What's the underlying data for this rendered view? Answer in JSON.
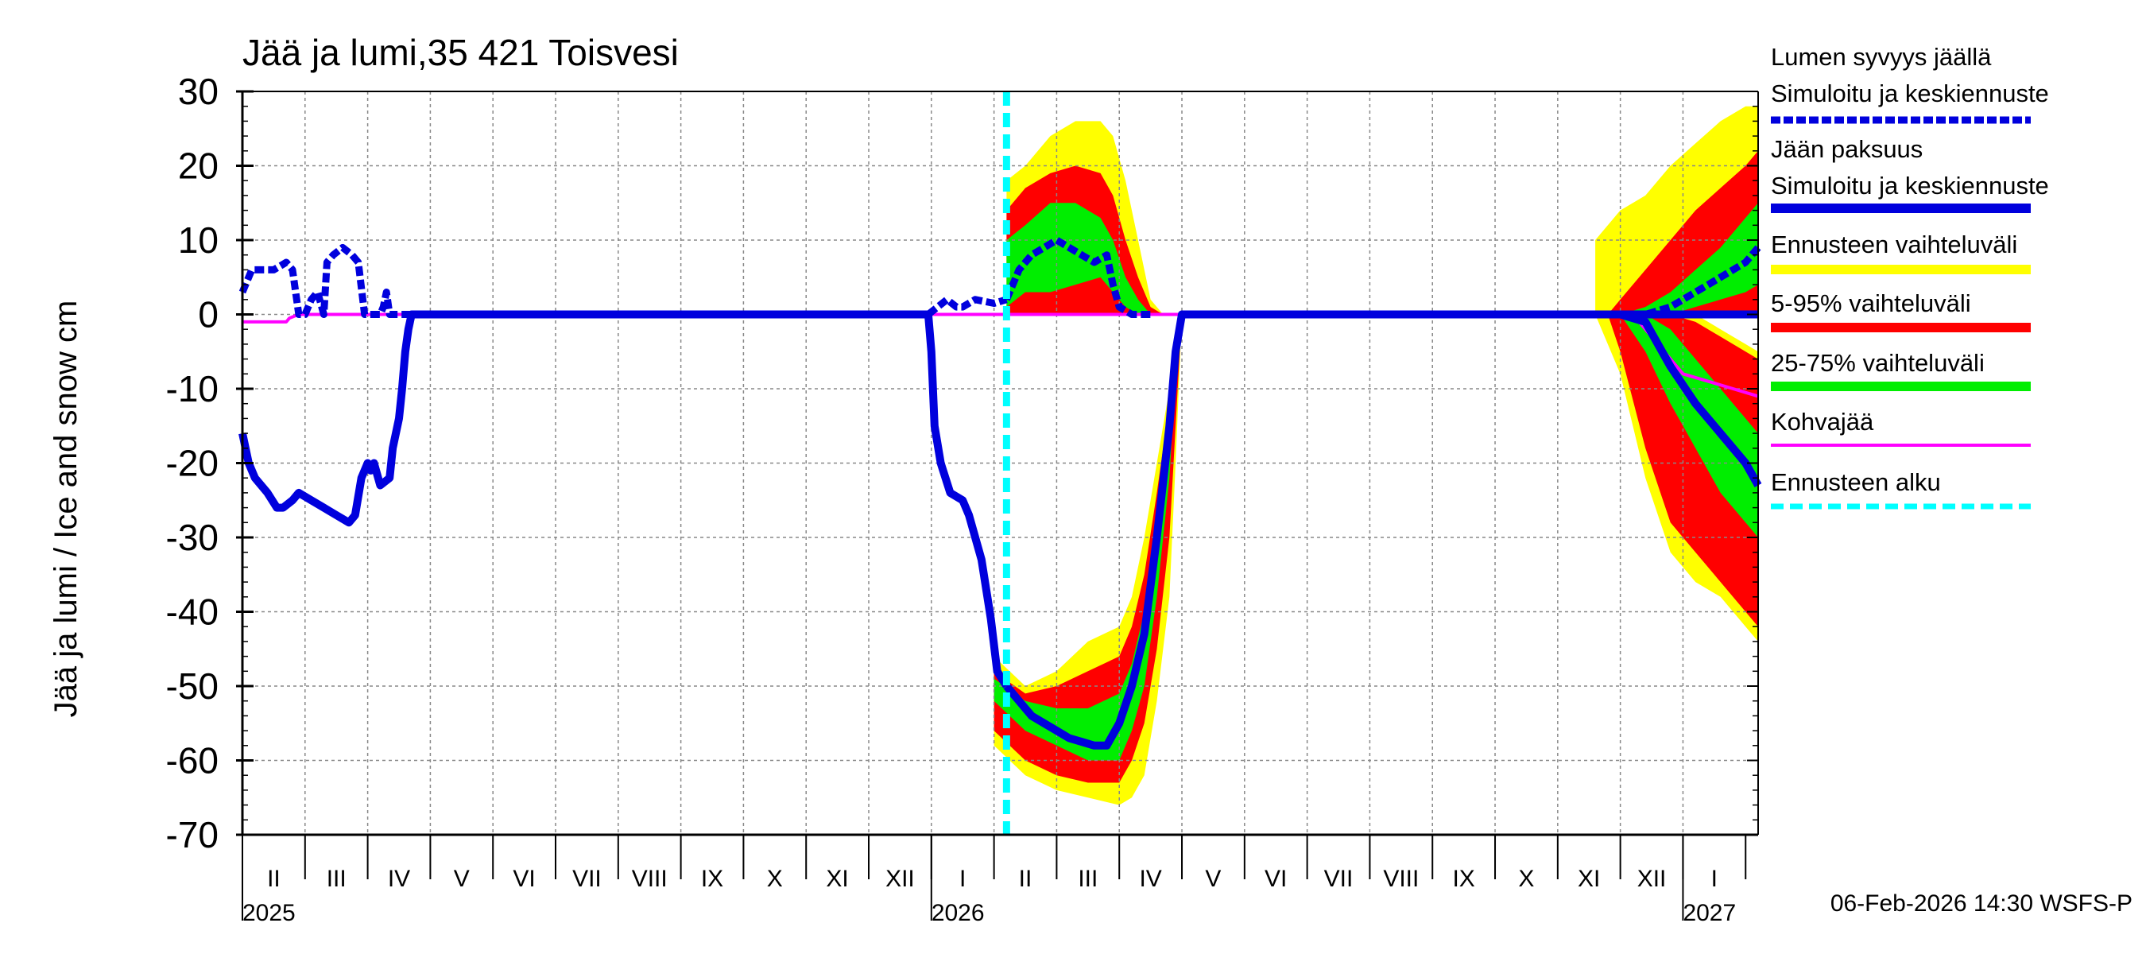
{
  "chart_data": {
    "type": "area",
    "title": "Jää ja lumi,35 421 Toisvesi",
    "ylabel": "Jää ja lumi / Ice and snow    cm",
    "ylim": [
      -70,
      30
    ],
    "yticks": [
      30,
      20,
      10,
      0,
      -10,
      -20,
      -30,
      -40,
      -50,
      -60,
      -70
    ],
    "xlim_months": [
      0,
      24.2
    ],
    "month_labels": [
      "II",
      "III",
      "IV",
      "V",
      "VI",
      "VII",
      "VIII",
      "IX",
      "X",
      "XI",
      "XII",
      "I",
      "II",
      "III",
      "IV",
      "V",
      "VI",
      "VII",
      "VIII",
      "IX",
      "X",
      "XI",
      "XII",
      "I"
    ],
    "year_labels": [
      {
        "label": "2025",
        "at_month": 0
      },
      {
        "label": "2026",
        "at_month": 11
      },
      {
        "label": "2027",
        "at_month": 23
      }
    ],
    "forecast_start_month": 12.2,
    "timestamp": "06-Feb-2026 14:30 WSFS-P",
    "legend": [
      {
        "label": "Lumen syvyys jäällä",
        "label2": "Simuloitu ja keskiennuste",
        "color": "#0000dd",
        "style": "dashed"
      },
      {
        "label": "Jään paksuus",
        "label2": "Simuloitu ja keskiennuste",
        "color": "#0000dd",
        "style": "solid"
      },
      {
        "label": "Ennusteen vaihteluväli",
        "color": "#ffff00",
        "style": "band"
      },
      {
        "label": "5-95% vaihteluväli",
        "color": "#ff0000",
        "style": "band"
      },
      {
        "label": "25-75% vaihteluväli",
        "color": "#00ee00",
        "style": "band"
      },
      {
        "label": "Kohvajää",
        "color": "#ff00ff",
        "style": "solid"
      },
      {
        "label": "Ennusteen alku",
        "color": "#00ffff",
        "style": "dashed"
      }
    ],
    "series": {
      "snow_on_ice": {
        "name": "Lumen syvyys jäällä",
        "x": [
          0,
          0.15,
          0.3,
          0.5,
          0.7,
          0.8,
          0.9,
          0.95,
          1.0,
          1.1,
          1.2,
          1.3,
          1.35,
          1.45,
          1.6,
          1.75,
          1.85,
          1.95,
          2.0,
          2.1,
          2.2,
          2.25,
          2.3,
          2.35,
          2.4,
          2.5,
          2.6,
          10.95,
          11.1,
          11.25,
          11.4,
          11.5,
          11.7,
          12.0,
          12.2
        ],
        "y": [
          3,
          6,
          6,
          6,
          7,
          6,
          0,
          0,
          0,
          2,
          3,
          0,
          7,
          8,
          9,
          8,
          7,
          0,
          0,
          0,
          0,
          1,
          3,
          0,
          0,
          0,
          0,
          0,
          1,
          2,
          1,
          1,
          2,
          1.5,
          2
        ]
      },
      "snow_forecast": {
        "x": [
          12.2,
          12.4,
          12.6,
          12.8,
          13.0,
          13.2,
          13.4,
          13.6,
          13.8,
          13.9,
          14.0,
          14.2,
          14.5
        ],
        "y": [
          2,
          6,
          8,
          9,
          10,
          9,
          8,
          7,
          8,
          4,
          1,
          0,
          0
        ]
      },
      "ice_thickness": {
        "name": "Jään paksuus",
        "x": [
          0,
          0.1,
          0.2,
          0.4,
          0.55,
          0.65,
          0.8,
          0.9,
          1.1,
          1.3,
          1.5,
          1.7,
          1.8,
          1.9,
          2.0,
          2.05,
          2.1,
          2.2,
          2.35,
          2.4,
          2.5,
          2.55,
          2.6,
          2.65,
          2.7,
          10.95,
          11.0,
          11.05,
          11.15,
          11.3,
          11.5,
          11.6,
          11.7,
          11.8,
          11.95,
          12.05,
          12.2
        ],
        "y": [
          -16,
          -20,
          -22,
          -24,
          -26,
          -26,
          -25,
          -24,
          -25,
          -26,
          -27,
          -28,
          -27,
          -22,
          -20,
          -21,
          -20,
          -23,
          -22,
          -18,
          -14,
          -10,
          -5,
          -2,
          0,
          0,
          -5,
          -15,
          -20,
          -24,
          -25,
          -27,
          -30,
          -33,
          -41,
          -48,
          -50
        ]
      },
      "ice_forecast": {
        "x": [
          12.2,
          12.4,
          12.6,
          12.8,
          13.0,
          13.2,
          13.4,
          13.6,
          13.8,
          14.0,
          14.2,
          14.4,
          14.6,
          14.8,
          14.9,
          15.0,
          24.2
        ],
        "y": [
          -50,
          -52,
          -54,
          -55,
          -56,
          -57,
          -57.5,
          -58,
          -58,
          -55,
          -50,
          -43,
          -30,
          -15,
          -5,
          0,
          0
        ]
      },
      "ice_forecast_late": {
        "x": [
          22.0,
          22.4,
          22.8,
          23.2,
          23.6,
          24.0,
          24.2
        ],
        "y": [
          0,
          -1,
          -7,
          -12,
          -16,
          -20,
          -23
        ]
      },
      "snow_forecast_late": {
        "x": [
          22.0,
          22.4,
          22.8,
          23.2,
          23.6,
          24.0,
          24.2
        ],
        "y": [
          0,
          0,
          1,
          3,
          5,
          7,
          9
        ]
      },
      "slush_ice": {
        "name": "Kohvajää",
        "x": [
          0,
          0.7,
          0.75,
          0.9,
          22.2,
          22.6,
          23.0,
          23.4,
          23.8,
          24.2
        ],
        "y": [
          -1,
          -1,
          -0.5,
          0,
          0,
          -4,
          -8,
          -9,
          -10,
          -11
        ]
      },
      "band_full_ice": {
        "x": [
          12.0,
          12.5,
          13.0,
          13.5,
          14.0,
          14.2,
          14.4,
          14.6,
          14.8,
          14.9,
          15.0
        ],
        "lower": [
          -58,
          -62,
          -64,
          -65,
          -66,
          -65,
          -62,
          -52,
          -38,
          -20,
          0
        ],
        "upper": [
          -46,
          -50,
          -48,
          -44,
          -42,
          -38,
          -30,
          -20,
          -10,
          -3,
          0
        ]
      },
      "band_5_95_ice": {
        "x": [
          12.0,
          12.5,
          13.0,
          13.5,
          14.0,
          14.2,
          14.4,
          14.6,
          14.8,
          14.9,
          15.0
        ],
        "lower": [
          -56,
          -60,
          -62,
          -63,
          -63,
          -60,
          -55,
          -45,
          -30,
          -15,
          0
        ],
        "upper": [
          -48,
          -51,
          -50,
          -48,
          -46,
          -42,
          -35,
          -24,
          -12,
          -4,
          0
        ]
      },
      "band_25_75_ice": {
        "x": [
          12.0,
          12.5,
          13.0,
          13.5,
          14.0,
          14.2,
          14.4,
          14.6,
          14.8,
          14.9,
          15.0
        ],
        "lower": [
          -52,
          -56,
          -58,
          -60,
          -60,
          -56,
          -50,
          -38,
          -22,
          -8,
          0
        ],
        "upper": [
          -49,
          -52,
          -53,
          -53,
          -51,
          -47,
          -40,
          -28,
          -14,
          -4,
          0
        ]
      },
      "band_full_snow": {
        "x": [
          12.2,
          12.5,
          12.9,
          13.3,
          13.7,
          13.9,
          14.1,
          14.3,
          14.5,
          14.7
        ],
        "lower": [
          0,
          0,
          0,
          0,
          0,
          0,
          0,
          0,
          0,
          0
        ],
        "upper": [
          18,
          20,
          24,
          26,
          26,
          24,
          18,
          10,
          2,
          0
        ]
      },
      "band_5_95_snow": {
        "x": [
          12.2,
          12.5,
          12.9,
          13.3,
          13.7,
          13.9,
          14.1,
          14.3,
          14.5,
          14.7
        ],
        "lower": [
          0,
          0,
          0,
          0,
          0,
          0,
          0,
          0,
          0,
          0
        ],
        "upper": [
          14,
          17,
          19,
          20,
          19,
          16,
          10,
          5,
          1,
          0
        ]
      },
      "band_25_75_snow": {
        "x": [
          12.2,
          12.5,
          12.9,
          13.3,
          13.7,
          13.9,
          14.1,
          14.3,
          14.5,
          14.7
        ],
        "lower": [
          1,
          3,
          3,
          4,
          5,
          3,
          1,
          0,
          0,
          0
        ],
        "upper": [
          10,
          12,
          15,
          15,
          13,
          10,
          5,
          2,
          0,
          0
        ]
      },
      "band_full_late_ice": {
        "x": [
          21.6,
          22.0,
          22.4,
          22.8,
          23.2,
          23.6,
          24.0,
          24.2
        ],
        "lower": [
          0,
          -8,
          -22,
          -32,
          -36,
          -38,
          -42,
          -44
        ],
        "upper": [
          0,
          0,
          0,
          0,
          0,
          -2,
          -4,
          -5
        ]
      },
      "band_5_95_late_ice": {
        "x": [
          21.8,
          22.0,
          22.4,
          22.8,
          23.2,
          23.6,
          24.0,
          24.2
        ],
        "lower": [
          0,
          -5,
          -18,
          -28,
          -32,
          -36,
          -40,
          -42
        ],
        "upper": [
          0,
          0,
          0,
          0,
          -1,
          -3,
          -5,
          -6
        ]
      },
      "band_25_75_late_ice": {
        "x": [
          22.0,
          22.4,
          22.8,
          23.2,
          23.6,
          24.0,
          24.2
        ],
        "lower": [
          0,
          -5,
          -12,
          -18,
          -24,
          -28,
          -30
        ],
        "upper": [
          0,
          0,
          -2,
          -6,
          -10,
          -14,
          -16
        ]
      },
      "band_full_late_snow": {
        "x": [
          21.6,
          22.0,
          22.4,
          22.8,
          23.2,
          23.6,
          24.0,
          24.2
        ],
        "lower": [
          0,
          0,
          0,
          0,
          0,
          0,
          0,
          0
        ],
        "upper": [
          10,
          14,
          16,
          20,
          23,
          26,
          28,
          28
        ]
      },
      "band_5_95_late_snow": {
        "x": [
          21.8,
          22.0,
          22.4,
          22.8,
          23.2,
          23.6,
          24.0,
          24.2
        ],
        "lower": [
          0,
          0,
          0,
          0,
          0,
          0,
          0,
          0
        ],
        "upper": [
          0,
          2,
          6,
          10,
          14,
          17,
          20,
          22
        ]
      },
      "band_25_75_late_snow": {
        "x": [
          22.0,
          22.4,
          22.8,
          23.2,
          23.6,
          24.0,
          24.2
        ],
        "lower": [
          0,
          0,
          0,
          1,
          2,
          3,
          4
        ],
        "upper": [
          0,
          1,
          3,
          6,
          9,
          13,
          15
        ]
      }
    }
  }
}
